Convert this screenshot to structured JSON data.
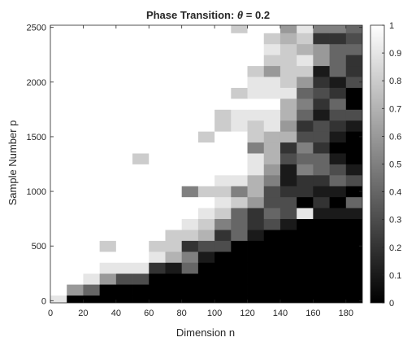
{
  "chart_data": {
    "type": "heatmap",
    "title": "Phase Transition: θ = 0.2",
    "title_prefix": "Phase Transition: ",
    "title_symbol": "θ",
    "title_suffix": " = 0.2",
    "xlabel": "Dimension n",
    "ylabel": "Sample Number p",
    "xlim": [
      0,
      190
    ],
    "ylim": [
      -20,
      2520
    ],
    "x_ticks": [
      0,
      20,
      40,
      60,
      80,
      100,
      120,
      140,
      160,
      180
    ],
    "y_ticks": [
      0,
      500,
      1000,
      1500,
      2000,
      2500
    ],
    "x": [
      5,
      15,
      25,
      35,
      45,
      55,
      65,
      75,
      85,
      95,
      105,
      115,
      125,
      135,
      145,
      155,
      165,
      175,
      185
    ],
    "y": [
      0,
      100,
      200,
      300,
      400,
      500,
      600,
      700,
      800,
      900,
      1000,
      1100,
      1200,
      1300,
      1400,
      1500,
      1600,
      1700,
      1800,
      1900,
      2000,
      2100,
      2200,
      2300,
      2400,
      2500
    ],
    "z": [
      [
        0.9,
        0,
        0,
        0,
        0,
        0,
        0,
        0,
        0,
        0,
        0,
        0,
        0,
        0,
        0,
        0,
        0,
        0,
        0
      ],
      [
        1,
        0.6,
        0.4,
        0,
        0,
        0,
        0,
        0,
        0,
        0,
        0,
        0,
        0,
        0,
        0,
        0,
        0,
        0,
        0
      ],
      [
        1,
        1,
        0.9,
        0.6,
        0.3,
        0.3,
        0,
        0,
        0,
        0,
        0,
        0,
        0,
        0,
        0,
        0,
        0,
        0,
        0
      ],
      [
        1,
        1,
        1,
        0.9,
        0.9,
        0.9,
        0.2,
        0.1,
        0.4,
        0,
        0,
        0,
        0,
        0,
        0,
        0,
        0,
        0,
        0
      ],
      [
        1,
        1,
        1,
        1,
        1,
        1,
        0.9,
        0.7,
        0.5,
        0.1,
        0,
        0,
        0,
        0,
        0,
        0,
        0,
        0,
        0
      ],
      [
        1,
        1,
        1,
        0.8,
        1,
        1,
        0.8,
        0.8,
        0.2,
        0.3,
        0.3,
        0,
        0,
        0,
        0,
        0,
        0,
        0,
        0
      ],
      [
        1,
        1,
        1,
        1,
        1,
        1,
        1,
        0.8,
        0.8,
        0.7,
        0.2,
        0.4,
        0.1,
        0,
        0,
        0,
        0,
        0,
        0
      ],
      [
        1,
        1,
        1,
        1,
        1,
        1,
        1,
        1,
        0.9,
        0.8,
        0.5,
        0.4,
        0.2,
        0.3,
        0.1,
        0,
        0,
        0,
        0
      ],
      [
        1,
        1,
        1,
        1,
        1,
        1,
        1,
        1,
        1,
        0.9,
        0.8,
        0.4,
        0.2,
        0.4,
        0.3,
        0.9,
        0.1,
        0.1,
        0.1
      ],
      [
        1,
        1,
        1,
        1,
        1,
        1,
        1,
        1,
        1,
        1,
        0.9,
        0.8,
        0.6,
        0.3,
        0.3,
        0,
        0.2,
        0,
        0.4
      ],
      [
        1,
        1,
        1,
        1,
        1,
        1,
        1,
        1,
        0.5,
        0.8,
        0.8,
        0.5,
        0.7,
        0.3,
        0.2,
        0.2,
        0.1,
        0.1,
        0
      ],
      [
        1,
        1,
        1,
        1,
        1,
        1,
        1,
        1,
        1,
        1,
        0.9,
        0.9,
        0.7,
        0.5,
        0.1,
        0.2,
        0.2,
        0.4,
        0.3
      ],
      [
        1,
        1,
        1,
        1,
        1,
        1,
        1,
        1,
        1,
        1,
        1,
        1,
        0.9,
        0.6,
        0.1,
        0.5,
        0.4,
        0.3,
        0.1
      ],
      [
        1,
        1,
        1,
        1,
        1,
        0.8,
        1,
        1,
        1,
        1,
        1,
        1,
        0.9,
        0.7,
        0.3,
        0.4,
        0.4,
        0.1,
        0
      ],
      [
        1,
        1,
        1,
        1,
        1,
        1,
        1,
        1,
        1,
        1,
        1,
        1,
        0.5,
        0.7,
        0.2,
        0.5,
        0.2,
        0,
        0
      ],
      [
        1,
        1,
        1,
        1,
        1,
        1,
        1,
        1,
        1,
        0.8,
        1,
        1,
        0.8,
        0.7,
        0.7,
        0.3,
        0.3,
        0.1,
        0
      ],
      [
        1,
        1,
        1,
        1,
        1,
        1,
        1,
        1,
        1,
        1,
        0.8,
        0.9,
        0.8,
        0.9,
        0.6,
        0.2,
        0.3,
        0.2,
        0.1
      ],
      [
        1,
        1,
        1,
        1,
        1,
        1,
        1,
        1,
        1,
        1,
        0.8,
        0.9,
        0.9,
        0.9,
        0.7,
        0.4,
        0.1,
        0.3,
        0.3
      ],
      [
        1,
        1,
        1,
        1,
        1,
        1,
        1,
        1,
        1,
        1,
        1,
        1,
        1,
        1,
        0.7,
        0.5,
        0.2,
        0.4,
        0
      ],
      [
        1,
        1,
        1,
        1,
        1,
        1,
        1,
        1,
        1,
        1,
        1,
        0.8,
        0.9,
        0.9,
        0.9,
        0.4,
        0.3,
        0.2,
        0
      ],
      [
        1,
        1,
        1,
        1,
        1,
        1,
        1,
        1,
        1,
        1,
        1,
        1,
        0.9,
        0.9,
        0.8,
        0.6,
        0.2,
        0.1,
        0.3
      ],
      [
        1,
        1,
        1,
        1,
        1,
        1,
        1,
        1,
        1,
        1,
        1,
        1,
        0.8,
        0.6,
        0.8,
        0.8,
        0.1,
        0.4,
        0.2
      ],
      [
        1,
        1,
        1,
        1,
        1,
        1,
        1,
        1,
        1,
        1,
        1,
        1,
        1,
        0.8,
        0.8,
        0.9,
        0.6,
        0.4,
        0.2
      ],
      [
        1,
        1,
        1,
        1,
        1,
        1,
        1,
        1,
        1,
        1,
        1,
        1,
        1,
        0.9,
        0.8,
        0.7,
        0.6,
        0.4,
        0.4
      ],
      [
        1,
        1,
        1,
        1,
        1,
        1,
        1,
        1,
        1,
        1,
        1,
        1,
        1,
        0.8,
        0.7,
        0.8,
        0.2,
        0.2,
        0.3
      ],
      [
        1,
        1,
        1,
        1,
        1,
        1,
        1,
        1,
        1,
        1,
        1,
        0.8,
        1,
        1,
        0.6,
        0.9,
        0.5,
        0.5,
        0.4
      ]
    ],
    "colormap": "gray",
    "colorbar": {
      "limits": [
        0,
        1
      ],
      "ticks": [
        0,
        0.1,
        0.2,
        0.3,
        0.4,
        0.5,
        0.6,
        0.7,
        0.8,
        0.9,
        1
      ]
    },
    "grid": false
  }
}
